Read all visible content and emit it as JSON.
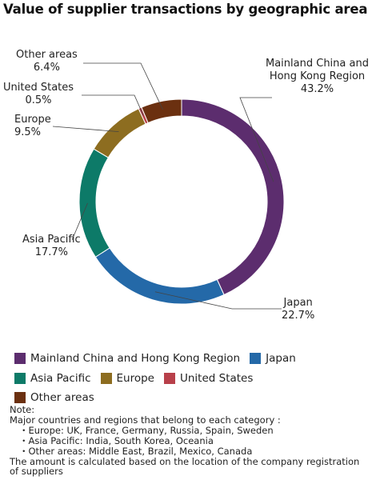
{
  "title": "Value of supplier transactions by geographic area",
  "colors": {
    "mainland": "#5c2d6e",
    "japan": "#2469a8",
    "asia": "#0d7a68",
    "europe": "#8d6d20",
    "us": "#b8404a",
    "other": "#6b3010"
  },
  "chart_data": {
    "type": "pie",
    "variant": "donut",
    "title": "Value of supplier transactions by geographic area",
    "series": [
      {
        "name": "Mainland China and Hong Kong Region",
        "label_lines": [
          "Mainland China and",
          "Hong Kong Region"
        ],
        "value": 43.2,
        "value_label": "43.2%"
      },
      {
        "name": "Japan",
        "label_lines": [
          "Japan"
        ],
        "value": 22.7,
        "value_label": "22.7%"
      },
      {
        "name": "Asia Pacific",
        "label_lines": [
          "Asia Pacific"
        ],
        "value": 17.7,
        "value_label": "17.7%"
      },
      {
        "name": "Europe",
        "label_lines": [
          "Europe"
        ],
        "value": 9.5,
        "value_label": "9.5%"
      },
      {
        "name": "United States",
        "label_lines": [
          "United States"
        ],
        "value": 0.5,
        "value_label": "0.5%"
      },
      {
        "name": "Other areas",
        "label_lines": [
          "Other areas"
        ],
        "value": 6.4,
        "value_label": "6.4%"
      }
    ],
    "legend_placement": "bottom"
  },
  "legend": {
    "rows": [
      [
        {
          "label": "Mainland China and Hong Kong Region",
          "color_key": "mainland"
        },
        {
          "label": "Japan",
          "color_key": "japan"
        }
      ],
      [
        {
          "label": "Asia Pacific",
          "color_key": "asia"
        },
        {
          "label": "Europe",
          "color_key": "europe"
        },
        {
          "label": "United States",
          "color_key": "us"
        }
      ],
      [
        {
          "label": "Other areas",
          "color_key": "other"
        }
      ]
    ]
  },
  "notes": {
    "heading": "Note:",
    "intro": "Major countries and regions that belong to each category :",
    "items": [
      "・Europe: UK, France, Germany, Russia, Spain, Sweden",
      "・Asia Pacific: India, South Korea, Oceania",
      "・Other areas: Middle East, Brazil, Mexico, Canada"
    ],
    "footer_line1": "The amount is calculated based on the location of the company registration",
    "footer_line2": "of suppliers"
  }
}
